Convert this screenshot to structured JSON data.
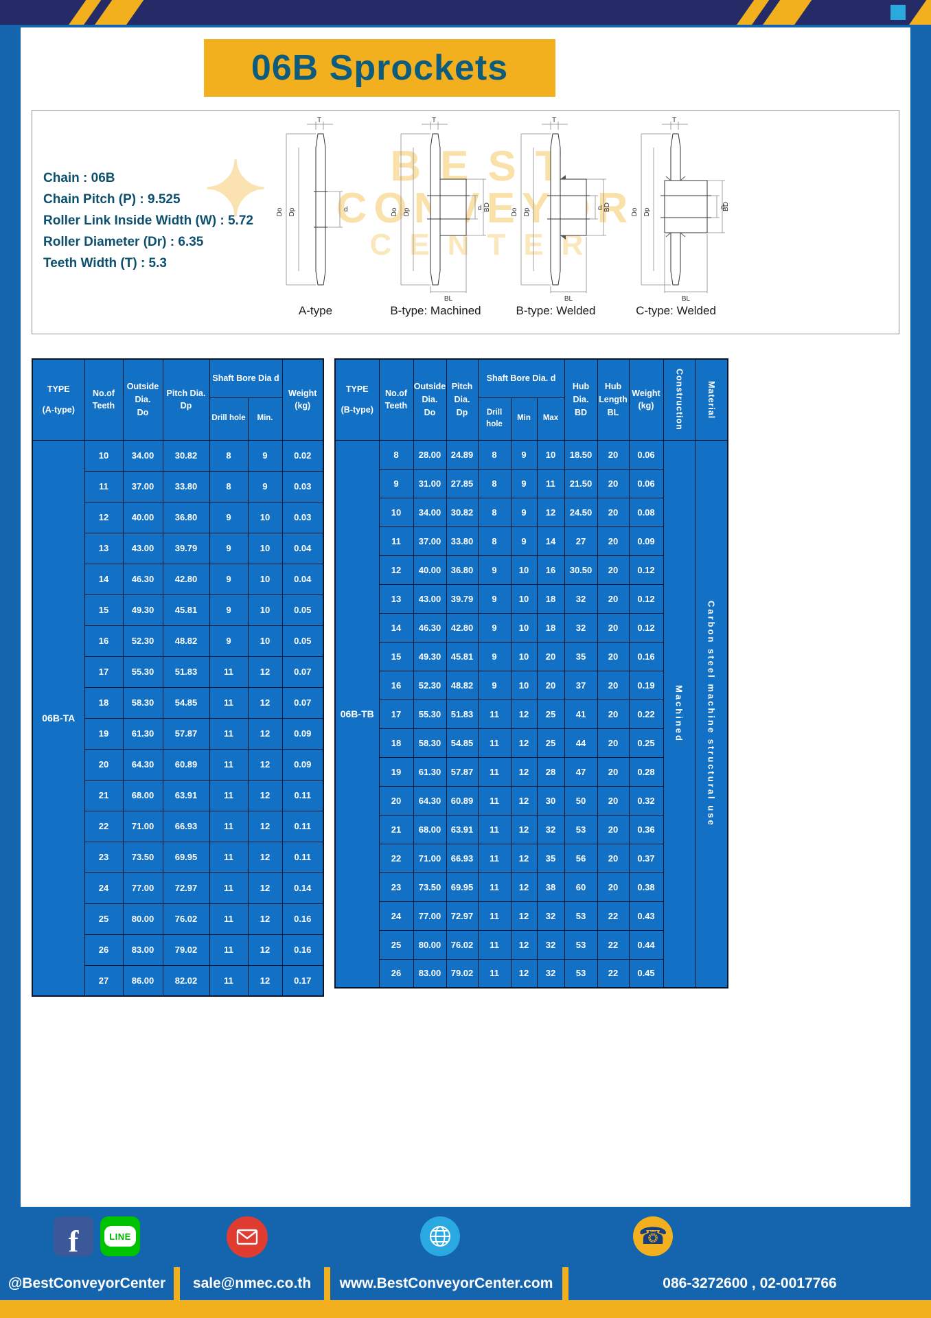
{
  "page_title": "06B Sprockets",
  "colors": {
    "page_blue": "#1565AE",
    "navy": "#252B66",
    "gold": "#F2B01E",
    "title_teal": "#0D5C7D",
    "table_blue": "#1371C5"
  },
  "specs": {
    "lines": [
      "Chain  :  06B",
      "Chain Pitch (P)  :  9.525",
      "Roller Link Inside Width (W)  :  5.72",
      "Roller Diameter (Dr)  :  6.35",
      "Teeth Width (T)  :  5.3"
    ]
  },
  "diagrams": {
    "captions": [
      "A-type",
      "B-type: Machined",
      "B-type: Welded",
      "C-type: Welded"
    ],
    "dims": {
      "t": "T",
      "dia_o": "Do",
      "dia_p": "Dp",
      "d": "d",
      "bd": "BD",
      "bl": "BL"
    },
    "watermark": [
      "BEST",
      "CONVEYOR",
      "CENTER"
    ]
  },
  "table_a": {
    "type_label": "06B-TA",
    "headers": {
      "type": "TYPE\n(A-type)",
      "teeth": "No.of\nTeeth",
      "outside": "Outside\nDia.\nDo",
      "pitch": "Pitch Dia.\nDp",
      "bore_group": "Shaft Bore Dia d",
      "drill": "Drill hole",
      "min": "Min.",
      "weight": "Weight\n(kg)"
    },
    "rows": [
      [
        "10",
        "34.00",
        "30.82",
        "8",
        "9",
        "0.02"
      ],
      [
        "11",
        "37.00",
        "33.80",
        "8",
        "9",
        "0.03"
      ],
      [
        "12",
        "40.00",
        "36.80",
        "9",
        "10",
        "0.03"
      ],
      [
        "13",
        "43.00",
        "39.79",
        "9",
        "10",
        "0.04"
      ],
      [
        "14",
        "46.30",
        "42.80",
        "9",
        "10",
        "0.04"
      ],
      [
        "15",
        "49.30",
        "45.81",
        "9",
        "10",
        "0.05"
      ],
      [
        "16",
        "52.30",
        "48.82",
        "9",
        "10",
        "0.05"
      ],
      [
        "17",
        "55.30",
        "51.83",
        "11",
        "12",
        "0.07"
      ],
      [
        "18",
        "58.30",
        "54.85",
        "11",
        "12",
        "0.07"
      ],
      [
        "19",
        "61.30",
        "57.87",
        "11",
        "12",
        "0.09"
      ],
      [
        "20",
        "64.30",
        "60.89",
        "11",
        "12",
        "0.09"
      ],
      [
        "21",
        "68.00",
        "63.91",
        "11",
        "12",
        "0.11"
      ],
      [
        "22",
        "71.00",
        "66.93",
        "11",
        "12",
        "0.11"
      ],
      [
        "23",
        "73.50",
        "69.95",
        "11",
        "12",
        "0.11"
      ],
      [
        "24",
        "77.00",
        "72.97",
        "11",
        "12",
        "0.14"
      ],
      [
        "25",
        "80.00",
        "76.02",
        "11",
        "12",
        "0.16"
      ],
      [
        "26",
        "83.00",
        "79.02",
        "11",
        "12",
        "0.16"
      ],
      [
        "27",
        "86.00",
        "82.02",
        "11",
        "12",
        "0.17"
      ]
    ]
  },
  "table_b": {
    "type_label": "06B-TB",
    "headers": {
      "type": "TYPE\n(B-type)",
      "teeth": "No.of\nTeeth",
      "outside": "Outside\nDia.\nDo",
      "pitch": "Pitch\nDia.\nDp",
      "bore_group": "Shaft Bore Dia.  d",
      "drill": "Drill hole",
      "min": "Min",
      "max": "Max",
      "hub_dia": "Hub\nDia.\nBD",
      "hub_len": "Hub\nLength\nBL",
      "weight": "Weight\n(kg)",
      "construction": "Construction",
      "material": "Material"
    },
    "construction_value": "Machined",
    "material_value": "Carbon steel machine structural use",
    "rows": [
      [
        "8",
        "28.00",
        "24.89",
        "8",
        "9",
        "10",
        "18.50",
        "20",
        "0.06"
      ],
      [
        "9",
        "31.00",
        "27.85",
        "8",
        "9",
        "11",
        "21.50",
        "20",
        "0.06"
      ],
      [
        "10",
        "34.00",
        "30.82",
        "8",
        "9",
        "12",
        "24.50",
        "20",
        "0.08"
      ],
      [
        "11",
        "37.00",
        "33.80",
        "8",
        "9",
        "14",
        "27",
        "20",
        "0.09"
      ],
      [
        "12",
        "40.00",
        "36.80",
        "9",
        "10",
        "16",
        "30.50",
        "20",
        "0.12"
      ],
      [
        "13",
        "43.00",
        "39.79",
        "9",
        "10",
        "18",
        "32",
        "20",
        "0.12"
      ],
      [
        "14",
        "46.30",
        "42.80",
        "9",
        "10",
        "18",
        "32",
        "20",
        "0.12"
      ],
      [
        "15",
        "49.30",
        "45.81",
        "9",
        "10",
        "20",
        "35",
        "20",
        "0.16"
      ],
      [
        "16",
        "52.30",
        "48.82",
        "9",
        "10",
        "20",
        "37",
        "20",
        "0.19"
      ],
      [
        "17",
        "55.30",
        "51.83",
        "11",
        "12",
        "25",
        "41",
        "20",
        "0.22"
      ],
      [
        "18",
        "58.30",
        "54.85",
        "11",
        "12",
        "25",
        "44",
        "20",
        "0.25"
      ],
      [
        "19",
        "61.30",
        "57.87",
        "11",
        "12",
        "28",
        "47",
        "20",
        "0.28"
      ],
      [
        "20",
        "64.30",
        "60.89",
        "11",
        "12",
        "30",
        "50",
        "20",
        "0.32"
      ],
      [
        "21",
        "68.00",
        "63.91",
        "11",
        "12",
        "32",
        "53",
        "20",
        "0.36"
      ],
      [
        "22",
        "71.00",
        "66.93",
        "11",
        "12",
        "35",
        "56",
        "20",
        "0.37"
      ],
      [
        "23",
        "73.50",
        "69.95",
        "11",
        "12",
        "38",
        "60",
        "20",
        "0.38"
      ],
      [
        "24",
        "77.00",
        "72.97",
        "11",
        "12",
        "32",
        "53",
        "22",
        "0.43"
      ],
      [
        "25",
        "80.00",
        "76.02",
        "11",
        "12",
        "32",
        "53",
        "22",
        "0.44"
      ],
      [
        "26",
        "83.00",
        "79.02",
        "11",
        "12",
        "32",
        "53",
        "22",
        "0.45"
      ]
    ]
  },
  "footer": {
    "facebook_label": "f",
    "line_label": "LINE",
    "phone_glyph": "☎",
    "items": [
      {
        "label": "@BestConveyorCenter"
      },
      {
        "label": "sale@nmec.co.th"
      },
      {
        "label": "www.BestConveyorCenter.com"
      },
      {
        "label": "086-3272600 , 02-0017766"
      }
    ]
  }
}
